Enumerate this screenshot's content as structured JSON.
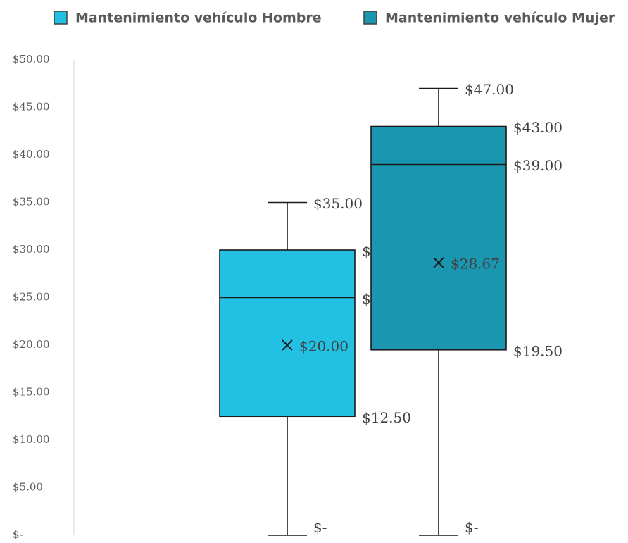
{
  "chart_data": {
    "type": "box",
    "ylim": [
      0,
      50
    ],
    "yticks": [
      {
        "value": 0,
        "label": "$-"
      },
      {
        "value": 5,
        "label": "$5.00"
      },
      {
        "value": 10,
        "label": "$10.00"
      },
      {
        "value": 15,
        "label": "$15.00"
      },
      {
        "value": 20,
        "label": "$20.00"
      },
      {
        "value": 25,
        "label": "$25.00"
      },
      {
        "value": 30,
        "label": "$30.00"
      },
      {
        "value": 35,
        "label": "$35.00"
      },
      {
        "value": 40,
        "label": "$40.00"
      },
      {
        "value": 45,
        "label": "$45.00"
      },
      {
        "value": 50,
        "label": "$50.00"
      }
    ],
    "legend": "top",
    "series": [
      {
        "name": "Mantenimiento vehículo Hombre",
        "color": "#22c1e4",
        "min": 0,
        "q1": 12.5,
        "median": 25,
        "q3": 30,
        "max": 35,
        "mean": 20,
        "value_labels": {
          "min": "$-",
          "q1": "$12.50",
          "median": "$25.00",
          "q3": "$30.00",
          "max": "$35.00",
          "mean": "$20.00"
        }
      },
      {
        "name": "Mantenimiento vehículo Mujer",
        "color": "#1a96b0",
        "min": 0,
        "q1": 19.5,
        "median": 39,
        "q3": 43,
        "max": 47,
        "mean": 28.67,
        "value_labels": {
          "min": "$-",
          "q1": "$19.50",
          "median": "$39.00",
          "q3": "$43.00",
          "max": "$47.00",
          "mean": "$28.67"
        }
      }
    ]
  }
}
